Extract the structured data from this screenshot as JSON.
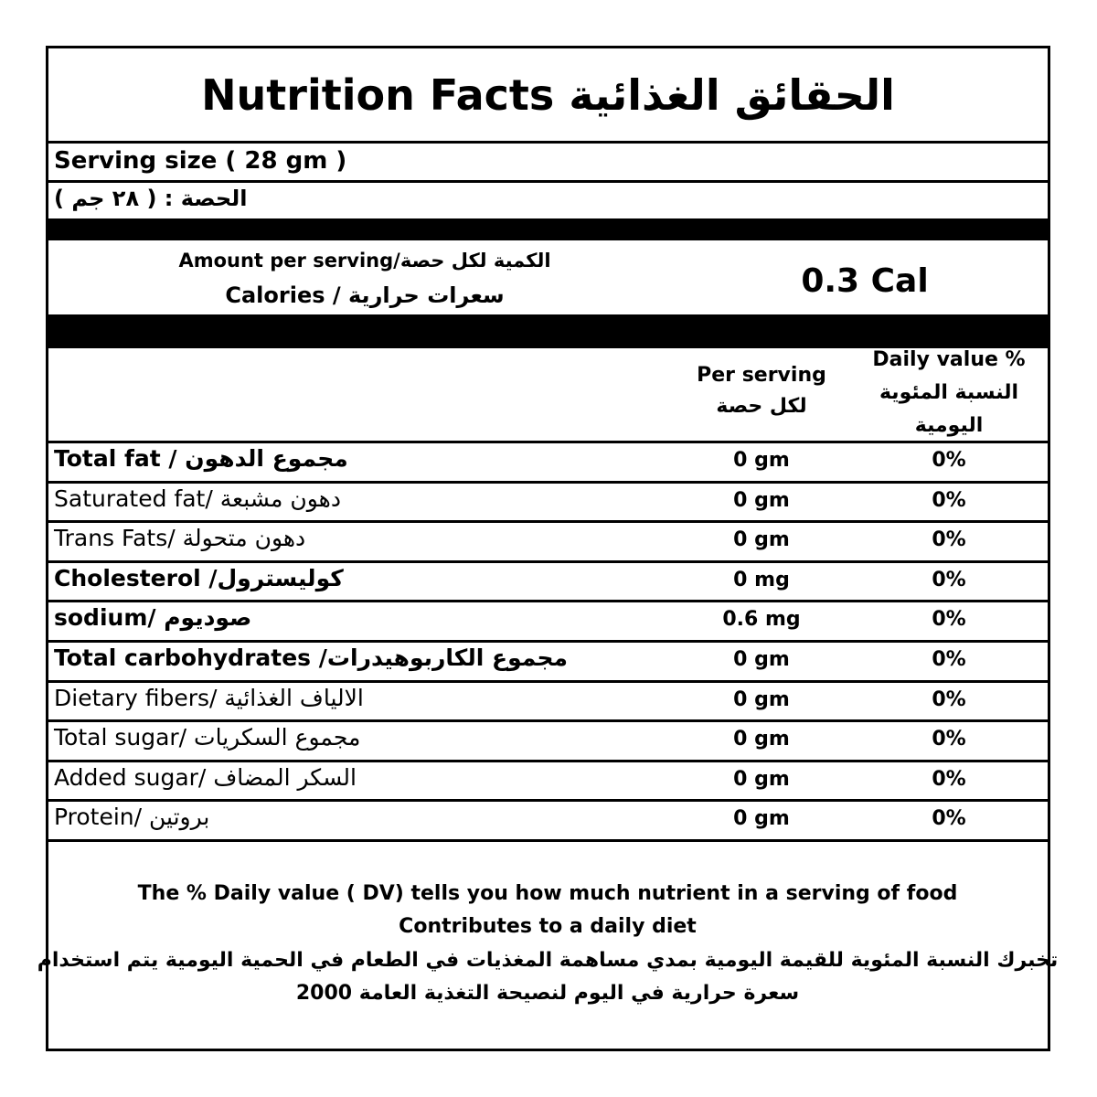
{
  "title": "Nutrition Facts الحقائق الغذائية",
  "serving": {
    "english": "Serving size ( 28 gm )",
    "arabic": "الحصة : ( ٢٨ جم )"
  },
  "calories": {
    "amount_label": "Amount per serving/الكمية لكل حصة",
    "label": "Calories  / سعرات حرارية",
    "value": "0.3 Cal"
  },
  "header": {
    "per_serving": [
      "Per serving",
      "لكل حصة"
    ],
    "daily_value": [
      "Daily value %",
      "النسبة المئوية",
      "اليومية"
    ]
  },
  "rows": [
    {
      "name": "Total fat / مجموع الدهون",
      "amount": "0 gm",
      "dv": "0%",
      "bold": true
    },
    {
      "name": "Saturated fat/ دهون مشبعة",
      "amount": "0 gm",
      "dv": "0%",
      "bold": false
    },
    {
      "name": "Trans Fats/ دهون متحولة",
      "amount": "0 gm",
      "dv": "0%",
      "bold": false
    },
    {
      "name": "Cholesterol /كوليسترول",
      "amount": "0 mg",
      "dv": "0%",
      "bold": true
    },
    {
      "name": "sodium/ صوديوم",
      "amount": "0.6 mg",
      "dv": "0%",
      "bold": true
    },
    {
      "name": "Total carbohydrates /مجموع الكاربوهيدرات",
      "amount": "0 gm",
      "dv": "0%",
      "bold": true
    },
    {
      "name": "Dietary fibers/ الالياف الغذائية",
      "amount": "0 gm",
      "dv": "0%",
      "bold": false
    },
    {
      "name": "Total sugar/ مجموع السكريات",
      "amount": "0 gm",
      "dv": "0%",
      "bold": false
    },
    {
      "name": "Added sugar/ السكر المضاف",
      "amount": "0 gm",
      "dv": "0%",
      "bold": false
    },
    {
      "name": "Protein/ بروتين",
      "amount": "0 gm",
      "dv": "0%",
      "bold": false
    }
  ],
  "footer": [
    "The % Daily value ( DV) tells you how much nutrient in a serving of food",
    "Contributes to a daily diet",
    "تخبرك النسبة المئوية للقيمة اليومية بمدي مساهمة المغذيات في الطعام في الحمية اليومية  يتم استخدام",
    "سعرة حرارية في اليوم لنصيحة التغذية العامة 2000"
  ]
}
